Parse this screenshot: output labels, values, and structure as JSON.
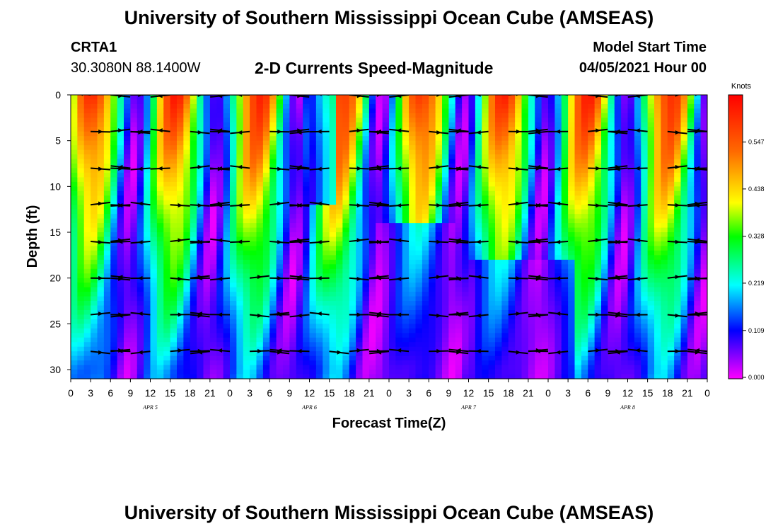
{
  "header": {
    "title": "University of Southern Mississippi Ocean Cube (AMSEAS)",
    "station_id": "CRTA1",
    "station_coords": "30.3080N  88.1400W",
    "plot_title": "2-D Currents Speed-Magnitude",
    "model_start_label": "Model Start Time",
    "model_start_value": "04/05/2021 Hour 00"
  },
  "footer": {
    "title": "University of Southern Mississippi Ocean Cube (AMSEAS)"
  },
  "chart_data": {
    "type": "heatmap",
    "xlabel": "Forecast Time(Z)",
    "ylabel": "Depth (ft)",
    "xlim": [
      0,
      96
    ],
    "ylim": [
      0,
      31
    ],
    "y_reversed": true,
    "x_tick_labels": [
      "0",
      "3",
      "6",
      "9",
      "12",
      "15",
      "18",
      "21",
      "0",
      "3",
      "6",
      "9",
      "12",
      "15",
      "18",
      "21",
      "0",
      "3",
      "6",
      "9",
      "12",
      "15",
      "18",
      "21",
      "0",
      "3",
      "6",
      "9",
      "12",
      "15",
      "18",
      "21",
      "0"
    ],
    "y_ticks": [
      0,
      5,
      10,
      15,
      20,
      25,
      30
    ],
    "date_labels": [
      {
        "label": "APR 5",
        "hour": 12
      },
      {
        "label": "APR 6",
        "hour": 36
      },
      {
        "label": "APR 7",
        "hour": 60
      },
      {
        "label": "APR 8",
        "hour": 84
      }
    ],
    "colorbar": {
      "unit": "Knots",
      "ticks": [
        "0.547",
        "0.438",
        "0.328",
        "0.219",
        "0.109",
        "0.000"
      ],
      "tick_values": [
        0.547,
        0.438,
        0.328,
        0.219,
        0.109,
        0.0
      ],
      "range": [
        0,
        0.66
      ],
      "colors": [
        "#ff00ff",
        "#0000ff",
        "#00ffff",
        "#00ff00",
        "#ffff00",
        "#ff6a00",
        "#ff0000"
      ]
    },
    "vector_depths": [
      0,
      4,
      8,
      12,
      16,
      20,
      24,
      28
    ],
    "vector_hours": [
      0,
      3,
      6,
      9,
      12,
      15,
      18,
      21,
      24,
      27,
      30,
      33,
      36,
      39,
      42,
      45,
      48,
      51,
      54,
      57,
      60,
      63,
      66,
      69,
      72,
      75,
      78,
      81,
      84,
      87,
      90,
      93,
      96
    ]
  }
}
